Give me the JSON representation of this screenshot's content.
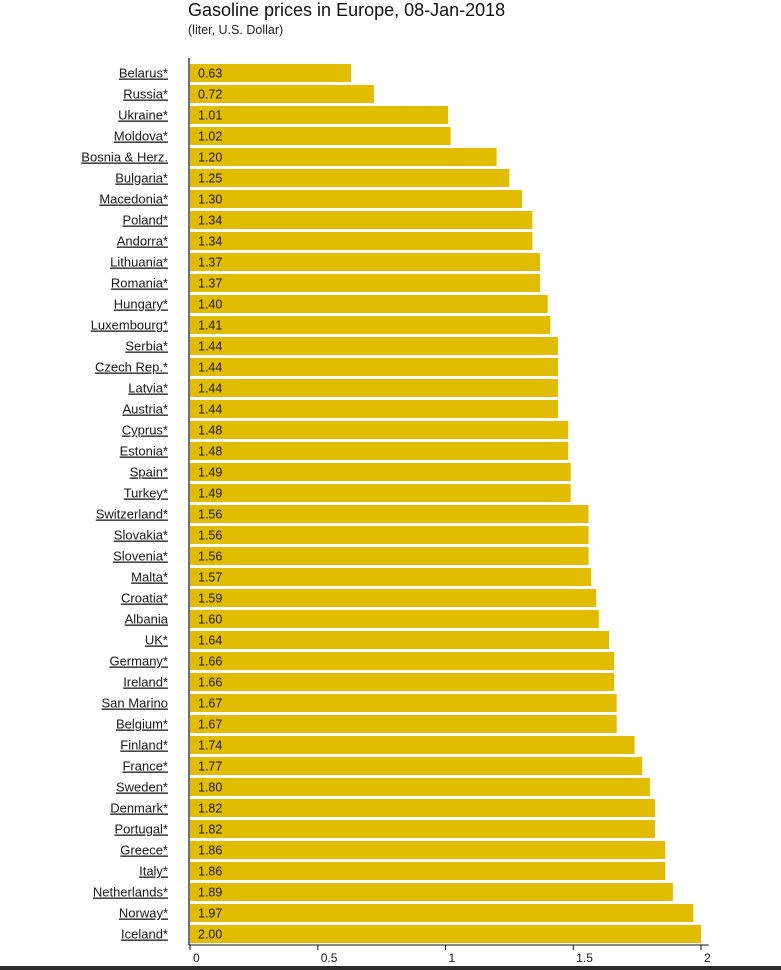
{
  "title": "Gasoline prices in Europe, 08-Jan-2018",
  "subtitle": "(liter, U.S. Dollar)",
  "colors": {
    "bar": "#E2BC00",
    "axis": "#111111"
  },
  "chart_data": {
    "type": "bar",
    "orientation": "horizontal",
    "title": "Gasoline prices in Europe, 08-Jan-2018",
    "subtitle": "(liter, U.S. Dollar)",
    "xlabel": "",
    "ylabel": "",
    "xlim": [
      0,
      2.03
    ],
    "xticks": [
      0,
      0.5,
      1,
      1.5,
      2
    ],
    "xtick_labels": [
      "0",
      "0.5",
      "1",
      "1.5",
      "2"
    ],
    "grid": false,
    "categories": [
      "Belarus*",
      "Russia*",
      "Ukraine*",
      "Moldova*",
      "Bosnia & Herz.",
      "Bulgaria*",
      "Macedonia*",
      "Poland*",
      "Andorra*",
      "Lithuania*",
      "Romania*",
      "Hungary*",
      "Luxembourg*",
      "Serbia*",
      "Czech Rep.*",
      "Latvia*",
      "Austria*",
      "Cyprus*",
      "Estonia*",
      "Spain*",
      "Turkey*",
      "Switzerland*",
      "Slovakia*",
      "Slovenia*",
      "Malta*",
      "Croatia*",
      "Albania",
      "UK*",
      "Germany*",
      "Ireland*",
      "San Marino",
      "Belgium*",
      "Finland*",
      "France*",
      "Sweden*",
      "Denmark*",
      "Portugal*",
      "Greece*",
      "Italy*",
      "Netherlands*",
      "Norway*",
      "Iceland*"
    ],
    "values": [
      0.63,
      0.72,
      1.01,
      1.02,
      1.2,
      1.25,
      1.3,
      1.34,
      1.34,
      1.37,
      1.37,
      1.4,
      1.41,
      1.44,
      1.44,
      1.44,
      1.44,
      1.48,
      1.48,
      1.49,
      1.49,
      1.56,
      1.56,
      1.56,
      1.57,
      1.59,
      1.6,
      1.64,
      1.66,
      1.66,
      1.67,
      1.67,
      1.74,
      1.77,
      1.8,
      1.82,
      1.82,
      1.86,
      1.86,
      1.89,
      1.97,
      2.0
    ],
    "value_labels": [
      "0.63",
      "0.72",
      "1.01",
      "1.02",
      "1.20",
      "1.25",
      "1.30",
      "1.34",
      "1.34",
      "1.37",
      "1.37",
      "1.40",
      "1.41",
      "1.44",
      "1.44",
      "1.44",
      "1.44",
      "1.48",
      "1.48",
      "1.49",
      "1.49",
      "1.56",
      "1.56",
      "1.56",
      "1.57",
      "1.59",
      "1.60",
      "1.64",
      "1.66",
      "1.66",
      "1.67",
      "1.67",
      "1.74",
      "1.77",
      "1.80",
      "1.82",
      "1.82",
      "1.86",
      "1.86",
      "1.89",
      "1.97",
      "2.00"
    ]
  }
}
